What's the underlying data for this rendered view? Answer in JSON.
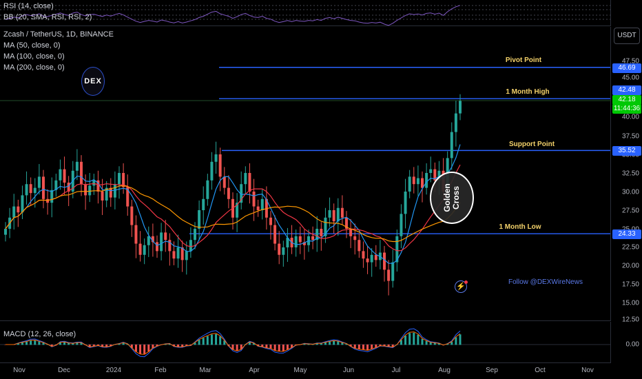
{
  "indicators": {
    "rsi": "RSI (14, close)",
    "bb": "BB (20, SMA, RSI, RSI, 2)"
  },
  "symbol": {
    "title": "Zcash / TetherUS, 1D, BINANCE",
    "ma50": "MA (50, close, 0)",
    "ma100": "MA (100, close, 0)",
    "ma200": "MA (200, close, 0)"
  },
  "currency_button": "USDT",
  "price_axis": {
    "ticks": [
      "47.50",
      "45.00",
      "42.50",
      "40.00",
      "37.50",
      "35.00",
      "32.50",
      "30.00",
      "27.50",
      "25.00",
      "22.50",
      "20.00",
      "17.50",
      "15.00",
      "12.50"
    ],
    "pivot_tag": "46.69",
    "high_tag": "42.48",
    "current_price": "42.18",
    "countdown": "11:44:36",
    "support_tag": "35.52",
    "low_tag": "24.33"
  },
  "annotations": {
    "pivot": "Pivot Point",
    "high": "1 Month High",
    "support": "Support Point",
    "low": "1 Month Low",
    "golden_line1": "Golden",
    "golden_line2": "Cross",
    "follow": "Follow @DEXWireNews",
    "logo": "DEX"
  },
  "macd": {
    "label": "MACD (12, 26, close)",
    "tick": "0.00"
  },
  "time_axis": [
    "Nov",
    "Dec",
    "2024",
    "Feb",
    "Mar",
    "Apr",
    "May",
    "Jun",
    "Jul",
    "Aug",
    "Sep",
    "Oct",
    "Nov"
  ],
  "colors": {
    "up": "#26a69a",
    "down": "#ef5350",
    "level_line": "#2962ff",
    "tag_blue": "#2962ff",
    "current_green": "#00c805",
    "annotation": "#f5d36b",
    "ma50": "#2196f3",
    "ma100": "#f23645",
    "ma200": "#ff9800"
  },
  "chart_data": {
    "type": "candlestick",
    "levels": [
      {
        "name": "Pivot Point",
        "value": 46.69
      },
      {
        "name": "1 Month High",
        "value": 42.48
      },
      {
        "name": "Support Point",
        "value": 35.52
      },
      {
        "name": "1 Month Low",
        "value": 24.33
      }
    ],
    "close_series": [
      25.0,
      26.5,
      28.0,
      27.2,
      29.5,
      31.0,
      29.8,
      30.5,
      32.0,
      29.0,
      28.5,
      30.2,
      31.5,
      33.0,
      31.2,
      30.0,
      32.8,
      34.0,
      31.0,
      29.5,
      30.8,
      31.5,
      30.0,
      28.8,
      30.5,
      29.2,
      31.0,
      32.5,
      30.6,
      28.0,
      25.5,
      23.0,
      21.5,
      22.8,
      24.0,
      23.2,
      22.0,
      24.5,
      23.5,
      22.0,
      21.0,
      22.5,
      20.8,
      22.0,
      23.5,
      25.0,
      27.5,
      29.0,
      31.5,
      34.0,
      35.0,
      32.0,
      30.5,
      29.0,
      26.5,
      28.5,
      31.0,
      32.5,
      30.0,
      28.0,
      27.5,
      29.0,
      26.5,
      25.5,
      23.0,
      21.5,
      22.5,
      23.8,
      22.5,
      24.0,
      23.2,
      22.8,
      24.0,
      23.5,
      25.0,
      24.0,
      26.5,
      27.5,
      26.0,
      27.8,
      26.5,
      25.0,
      24.0,
      23.5,
      22.0,
      21.0,
      20.5,
      21.5,
      20.8,
      21.8,
      19.5,
      18.0,
      20.5,
      24.0,
      27.0,
      30.0,
      32.0,
      31.0,
      31.8,
      30.5,
      32.5,
      33.0,
      31.5,
      32.8,
      30.0,
      34.5,
      38.0,
      40.5,
      42.18
    ]
  }
}
